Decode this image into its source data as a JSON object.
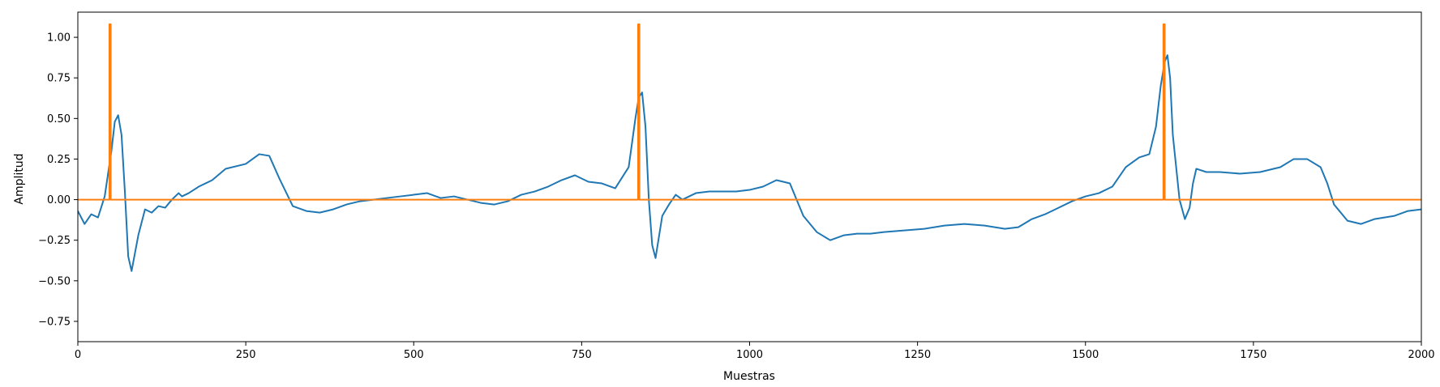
{
  "chart_data": {
    "type": "line",
    "title": "",
    "xlabel": "Muestras",
    "ylabel": "Amplitud",
    "xlim": [
      0,
      2000
    ],
    "ylim": [
      -0.875,
      1.155
    ],
    "xticks": [
      0,
      250,
      500,
      750,
      1000,
      1250,
      1500,
      1750,
      2000
    ],
    "xtick_labels": [
      "0",
      "250",
      "500",
      "750",
      "1000",
      "1250",
      "1500",
      "1750",
      "2000"
    ],
    "yticks": [
      -0.75,
      -0.5,
      -0.25,
      0.0,
      0.25,
      0.5,
      0.75,
      1.0
    ],
    "ytick_labels": [
      "−0.75",
      "−0.50",
      "−0.25",
      "0.00",
      "0.25",
      "0.50",
      "0.75",
      "1.00"
    ],
    "grid": false,
    "series": [
      {
        "color": "#1f77b4",
        "x": [
          0,
          10,
          20,
          30,
          40,
          50,
          55,
          60,
          65,
          70,
          75,
          80,
          90,
          100,
          110,
          120,
          130,
          140,
          150,
          155,
          165,
          180,
          200,
          220,
          250,
          270,
          285,
          300,
          320,
          340,
          360,
          380,
          400,
          420,
          440,
          460,
          480,
          500,
          520,
          540,
          560,
          580,
          600,
          620,
          640,
          660,
          680,
          700,
          720,
          740,
          760,
          780,
          800,
          820,
          830,
          835,
          840,
          845,
          850,
          855,
          860,
          870,
          880,
          890,
          900,
          920,
          940,
          960,
          980,
          1000,
          1020,
          1040,
          1060,
          1070,
          1080,
          1100,
          1120,
          1140,
          1160,
          1180,
          1200,
          1230,
          1260,
          1290,
          1320,
          1350,
          1380,
          1400,
          1420,
          1440,
          1460,
          1480,
          1500,
          1520,
          1540,
          1560,
          1580,
          1595,
          1605,
          1612,
          1618,
          1622,
          1626,
          1630,
          1640,
          1648,
          1655,
          1660,
          1665,
          1680,
          1700,
          1730,
          1760,
          1790,
          1810,
          1830,
          1850,
          1860,
          1870,
          1890,
          1910,
          1930,
          1960,
          1980,
          2000
        ],
        "y": [
          -0.07,
          -0.15,
          -0.09,
          -0.11,
          0.02,
          0.3,
          0.48,
          0.52,
          0.4,
          0.05,
          -0.35,
          -0.44,
          -0.22,
          -0.06,
          -0.08,
          -0.04,
          -0.05,
          0.0,
          0.04,
          0.02,
          0.04,
          0.08,
          0.12,
          0.19,
          0.22,
          0.28,
          0.27,
          0.13,
          -0.04,
          -0.07,
          -0.08,
          -0.06,
          -0.03,
          -0.01,
          0.0,
          0.01,
          0.02,
          0.03,
          0.04,
          0.01,
          0.02,
          0.0,
          -0.02,
          -0.03,
          -0.01,
          0.03,
          0.05,
          0.08,
          0.12,
          0.15,
          0.11,
          0.1,
          0.07,
          0.2,
          0.5,
          0.63,
          0.66,
          0.45,
          0.0,
          -0.28,
          -0.36,
          -0.1,
          -0.03,
          0.03,
          0.0,
          0.04,
          0.05,
          0.05,
          0.05,
          0.06,
          0.08,
          0.12,
          0.1,
          0.0,
          -0.1,
          -0.2,
          -0.25,
          -0.22,
          -0.21,
          -0.21,
          -0.2,
          -0.19,
          -0.18,
          -0.16,
          -0.15,
          -0.16,
          -0.18,
          -0.17,
          -0.12,
          -0.09,
          -0.05,
          -0.01,
          0.02,
          0.04,
          0.08,
          0.2,
          0.26,
          0.28,
          0.45,
          0.7,
          0.85,
          0.89,
          0.75,
          0.4,
          0.0,
          -0.12,
          -0.05,
          0.1,
          0.19,
          0.17,
          0.17,
          0.16,
          0.17,
          0.2,
          0.25,
          0.25,
          0.2,
          0.1,
          -0.03,
          -0.13,
          -0.15,
          -0.12,
          -0.1,
          -0.07,
          -0.06
        ]
      },
      {
        "color": "#ff7f0e",
        "x": [
          0,
          47,
          47,
          49,
          49,
          834,
          834,
          836,
          836,
          1616,
          1616,
          1618,
          1618,
          2000
        ],
        "y": [
          0,
          0,
          1.08,
          1.08,
          0,
          0,
          1.08,
          1.08,
          0,
          0,
          1.08,
          1.08,
          0,
          0
        ]
      }
    ]
  }
}
